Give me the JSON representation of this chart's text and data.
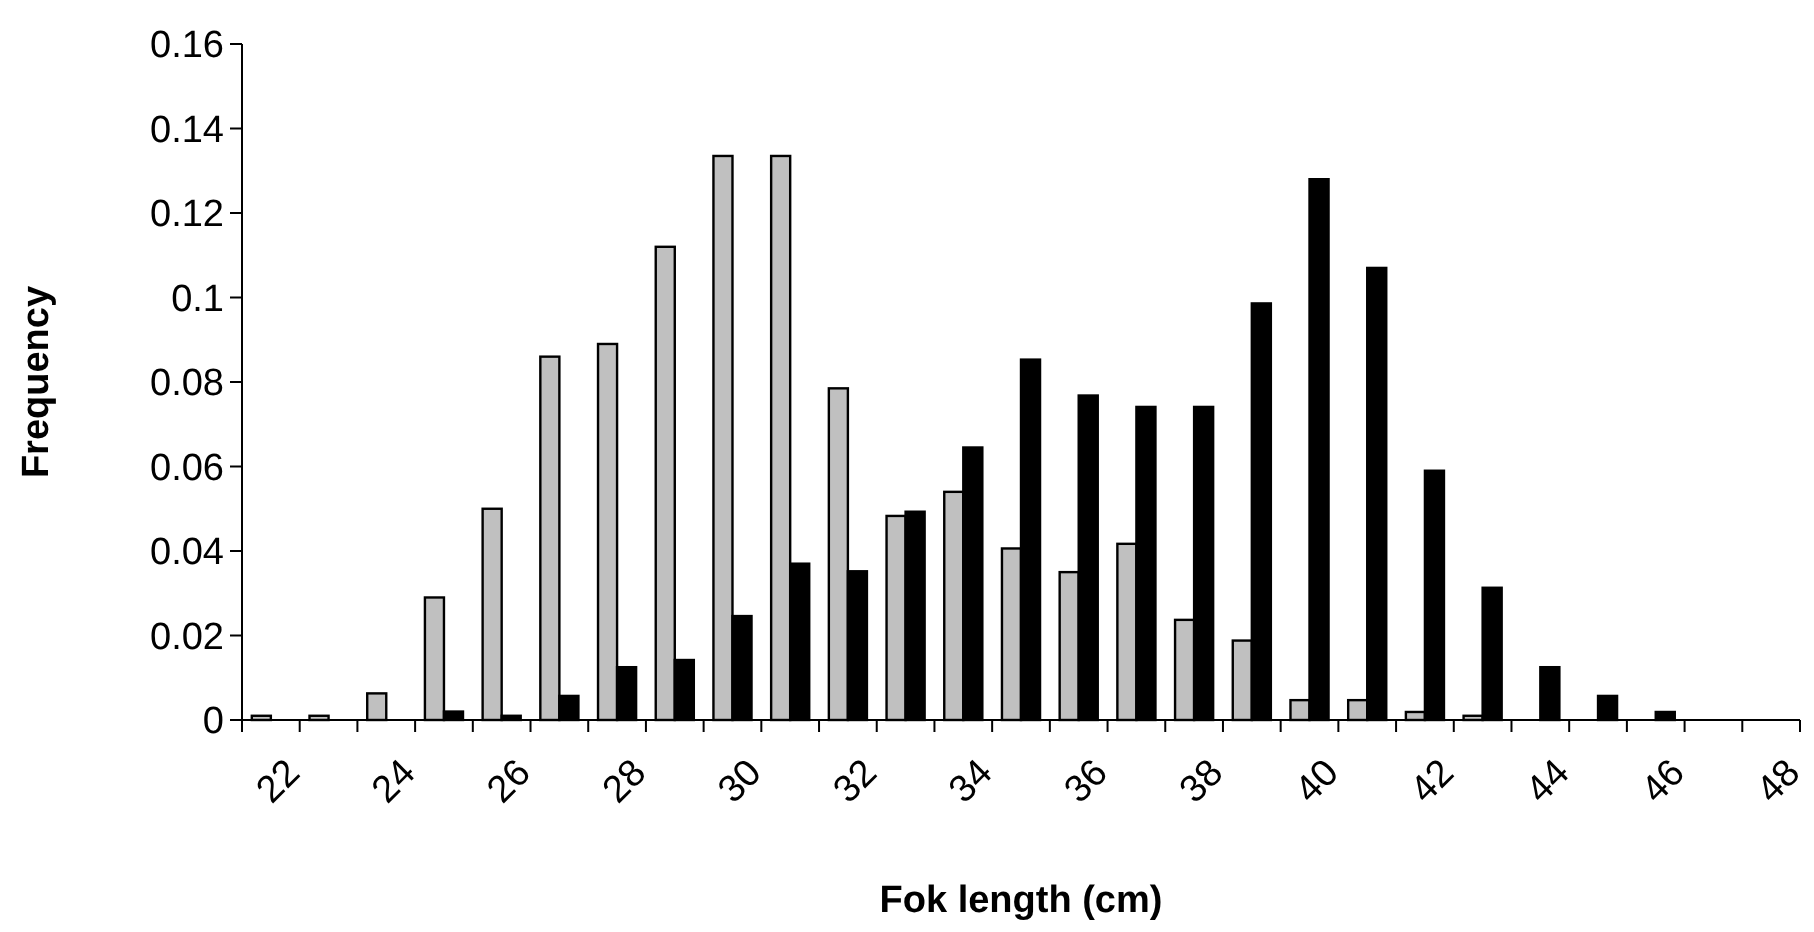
{
  "chart_data": {
    "type": "bar",
    "xlabel": "Fok length (cm)",
    "ylabel": "Frequency",
    "categories": [
      "22",
      null,
      "24",
      null,
      "26",
      null,
      "28",
      null,
      "30",
      null,
      "32",
      null,
      "34",
      null,
      "36",
      null,
      "38",
      null,
      "40",
      null,
      "42",
      null,
      "44",
      null,
      "46",
      null,
      "48"
    ],
    "series": [
      {
        "color": "#c0c0c0",
        "values": [
          0.001,
          0.001,
          0.0063,
          0.029,
          0.05,
          0.086,
          0.089,
          0.112,
          0.1335,
          0.1335,
          0.0785,
          0.0483,
          0.054,
          0.0406,
          0.035,
          0.0417,
          0.0237,
          0.0188,
          0.0047,
          0.0047,
          0.0019,
          0.001,
          0,
          0,
          0,
          0,
          0
        ]
      },
      {
        "color": "#000000",
        "values": [
          0,
          0,
          0,
          0.002,
          0.001,
          0.0057,
          0.0125,
          0.0142,
          0.0246,
          0.037,
          0.0352,
          0.0493,
          0.0645,
          0.0853,
          0.0768,
          0.0741,
          0.0741,
          0.0986,
          0.128,
          0.107,
          0.059,
          0.0313,
          0.0125,
          0.0057,
          0.0019,
          0,
          0
        ]
      }
    ],
    "ylim": [
      0,
      0.16
    ],
    "yticks": [
      0,
      0.02,
      0.04,
      0.06,
      0.08,
      0.1,
      0.12,
      0.14,
      0.16
    ]
  }
}
